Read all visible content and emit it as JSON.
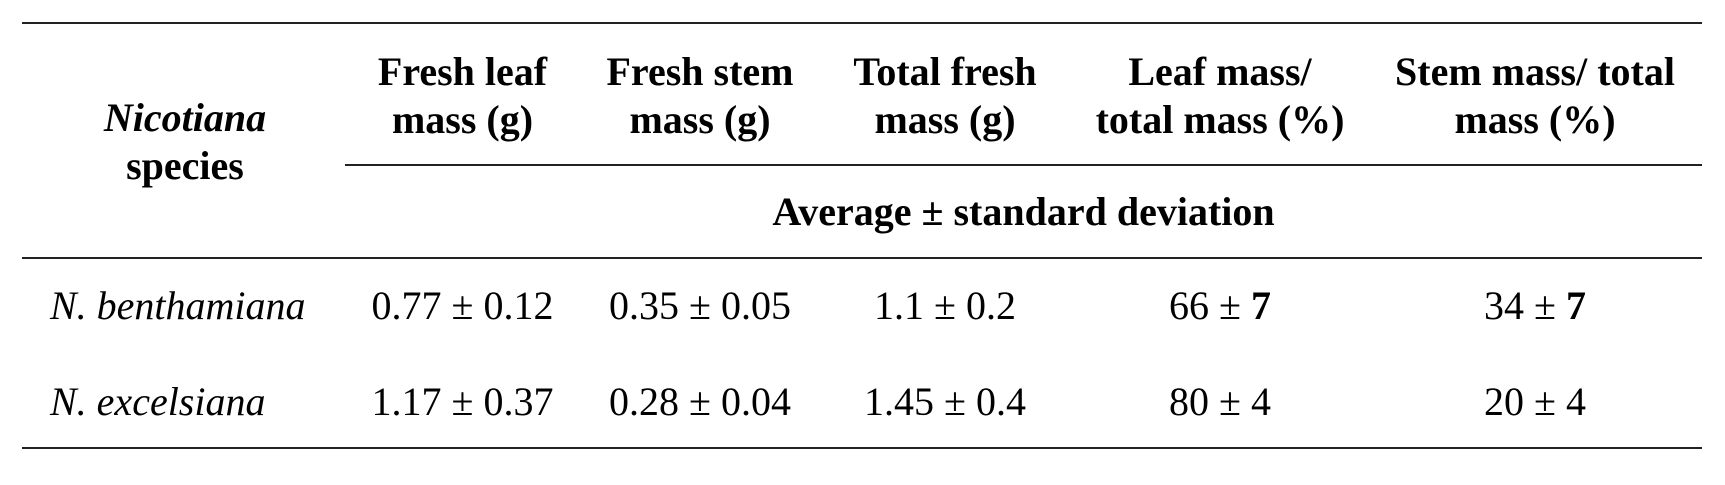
{
  "table": {
    "species_header_italic": "Nicotiana",
    "species_header_rest": "species",
    "columns": [
      {
        "line1": "Fresh leaf",
        "line2": "mass (g)"
      },
      {
        "line1": "Fresh stem",
        "line2": "mass (g)"
      },
      {
        "line1": "Total fresh",
        "line2": "mass (g)"
      },
      {
        "line1": "Leaf mass/",
        "line2": "total mass (%)"
      },
      {
        "line1": "Stem mass/ total",
        "line2": "mass (%)"
      }
    ],
    "subheader": "Average ± standard deviation",
    "rows": [
      {
        "species": "N. benthamiana",
        "fresh_leaf": "0.77 ± 0.12",
        "fresh_stem": "0.35 ± 0.05",
        "total_fresh": "1.1 ± 0.2",
        "leaf_pct_mean": "66 ±",
        "leaf_pct_sd": "7",
        "stem_pct_mean": "34 ±",
        "stem_pct_sd": "7"
      },
      {
        "species": "N. excelsiana",
        "fresh_leaf": "1.17 ± 0.37",
        "fresh_stem": "0.28 ± 0.04",
        "total_fresh": "1.45 ± 0.4",
        "leaf_pct_mean": "80 ±",
        "leaf_pct_sd": "4",
        "stem_pct_mean": "20 ±",
        "stem_pct_sd": "4"
      }
    ]
  }
}
